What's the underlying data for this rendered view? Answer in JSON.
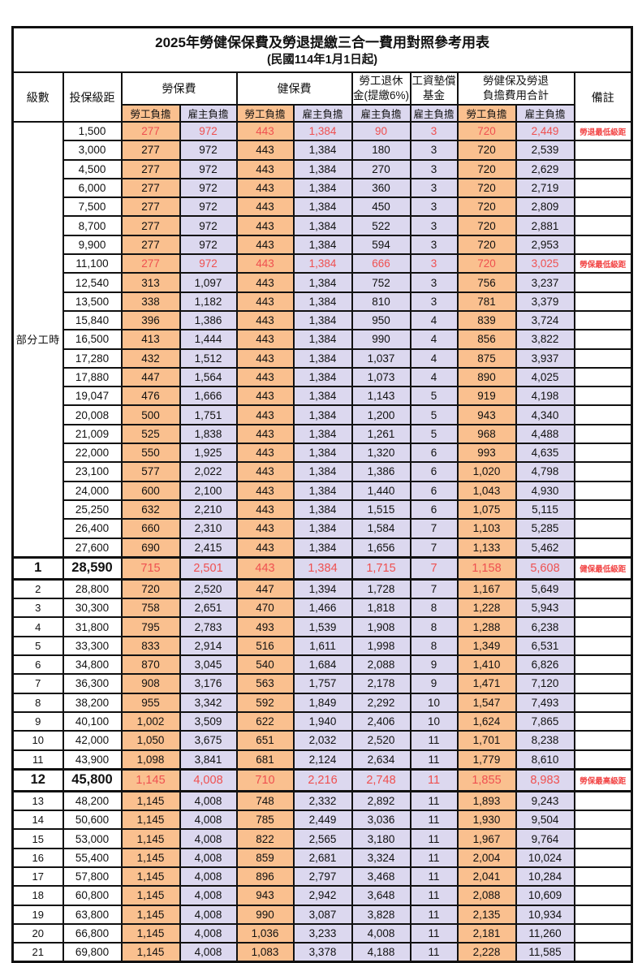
{
  "title": "2025年勞健保保費及勞退提繳三合一費用對照參考用表",
  "subtitle": "(民國114年1月1日起)",
  "header": {
    "level": "級數",
    "bracket": "投保級距",
    "labor_ins": "勞保費",
    "health_ins": "健保費",
    "pension_line1": "勞工退休",
    "pension_line2": "金(提繳6%)",
    "wage_fund_line1": "工資墊償",
    "wage_fund_line2": "基金",
    "total_line1": "勞健保及勞退",
    "total_line2": "負擔費用合計",
    "remark": "備註",
    "employee": "勞工負擔",
    "employer": "雇主負擔"
  },
  "part_time_label": "部分工時",
  "colors": {
    "employee_column_bg": "#FAC08F",
    "employer_column_bg": "#DCD8EF",
    "highlight_text": "#EF5050",
    "remark_text": "#F24444",
    "grid_border": "#111111"
  },
  "rows": [
    {
      "level": "",
      "bracket": "1,500",
      "v": [
        "277",
        "972",
        "443",
        "1,384",
        "90",
        "3",
        "720",
        "2,449"
      ],
      "remark": "勞退最低級距",
      "red": true,
      "big": false
    },
    {
      "level": "",
      "bracket": "3,000",
      "v": [
        "277",
        "972",
        "443",
        "1,384",
        "180",
        "3",
        "720",
        "2,539"
      ],
      "remark": "",
      "red": false,
      "big": false
    },
    {
      "level": "",
      "bracket": "4,500",
      "v": [
        "277",
        "972",
        "443",
        "1,384",
        "270",
        "3",
        "720",
        "2,629"
      ],
      "remark": "",
      "red": false,
      "big": false
    },
    {
      "level": "",
      "bracket": "6,000",
      "v": [
        "277",
        "972",
        "443",
        "1,384",
        "360",
        "3",
        "720",
        "2,719"
      ],
      "remark": "",
      "red": false,
      "big": false
    },
    {
      "level": "",
      "bracket": "7,500",
      "v": [
        "277",
        "972",
        "443",
        "1,384",
        "450",
        "3",
        "720",
        "2,809"
      ],
      "remark": "",
      "red": false,
      "big": false
    },
    {
      "level": "",
      "bracket": "8,700",
      "v": [
        "277",
        "972",
        "443",
        "1,384",
        "522",
        "3",
        "720",
        "2,881"
      ],
      "remark": "",
      "red": false,
      "big": false
    },
    {
      "level": "",
      "bracket": "9,900",
      "v": [
        "277",
        "972",
        "443",
        "1,384",
        "594",
        "3",
        "720",
        "2,953"
      ],
      "remark": "",
      "red": false,
      "big": false
    },
    {
      "level": "",
      "bracket": "11,100",
      "v": [
        "277",
        "972",
        "443",
        "1,384",
        "666",
        "3",
        "720",
        "3,025"
      ],
      "remark": "勞保最低級距",
      "red": true,
      "big": false
    },
    {
      "level": "",
      "bracket": "12,540",
      "v": [
        "313",
        "1,097",
        "443",
        "1,384",
        "752",
        "3",
        "756",
        "3,237"
      ],
      "remark": "",
      "red": false,
      "big": false
    },
    {
      "level": "",
      "bracket": "13,500",
      "v": [
        "338",
        "1,182",
        "443",
        "1,384",
        "810",
        "3",
        "781",
        "3,379"
      ],
      "remark": "",
      "red": false,
      "big": false
    },
    {
      "level": "",
      "bracket": "15,840",
      "v": [
        "396",
        "1,386",
        "443",
        "1,384",
        "950",
        "4",
        "839",
        "3,724"
      ],
      "remark": "",
      "red": false,
      "big": false
    },
    {
      "level": "",
      "bracket": "16,500",
      "v": [
        "413",
        "1,444",
        "443",
        "1,384",
        "990",
        "4",
        "856",
        "3,822"
      ],
      "remark": "",
      "red": false,
      "big": false
    },
    {
      "level": "",
      "bracket": "17,280",
      "v": [
        "432",
        "1,512",
        "443",
        "1,384",
        "1,037",
        "4",
        "875",
        "3,937"
      ],
      "remark": "",
      "red": false,
      "big": false
    },
    {
      "level": "",
      "bracket": "17,880",
      "v": [
        "447",
        "1,564",
        "443",
        "1,384",
        "1,073",
        "4",
        "890",
        "4,025"
      ],
      "remark": "",
      "red": false,
      "big": false
    },
    {
      "level": "",
      "bracket": "19,047",
      "v": [
        "476",
        "1,666",
        "443",
        "1,384",
        "1,143",
        "5",
        "919",
        "4,198"
      ],
      "remark": "",
      "red": false,
      "big": false
    },
    {
      "level": "",
      "bracket": "20,008",
      "v": [
        "500",
        "1,751",
        "443",
        "1,384",
        "1,200",
        "5",
        "943",
        "4,340"
      ],
      "remark": "",
      "red": false,
      "big": false
    },
    {
      "level": "",
      "bracket": "21,009",
      "v": [
        "525",
        "1,838",
        "443",
        "1,384",
        "1,261",
        "5",
        "968",
        "4,488"
      ],
      "remark": "",
      "red": false,
      "big": false
    },
    {
      "level": "",
      "bracket": "22,000",
      "v": [
        "550",
        "1,925",
        "443",
        "1,384",
        "1,320",
        "6",
        "993",
        "4,635"
      ],
      "remark": "",
      "red": false,
      "big": false
    },
    {
      "level": "",
      "bracket": "23,100",
      "v": [
        "577",
        "2,022",
        "443",
        "1,384",
        "1,386",
        "6",
        "1,020",
        "4,798"
      ],
      "remark": "",
      "red": false,
      "big": false
    },
    {
      "level": "",
      "bracket": "24,000",
      "v": [
        "600",
        "2,100",
        "443",
        "1,384",
        "1,440",
        "6",
        "1,043",
        "4,930"
      ],
      "remark": "",
      "red": false,
      "big": false
    },
    {
      "level": "",
      "bracket": "25,250",
      "v": [
        "632",
        "2,210",
        "443",
        "1,384",
        "1,515",
        "6",
        "1,075",
        "5,115"
      ],
      "remark": "",
      "red": false,
      "big": false
    },
    {
      "level": "",
      "bracket": "26,400",
      "v": [
        "660",
        "2,310",
        "443",
        "1,384",
        "1,584",
        "7",
        "1,103",
        "5,285"
      ],
      "remark": "",
      "red": false,
      "big": false
    },
    {
      "level": "",
      "bracket": "27,600",
      "v": [
        "690",
        "2,415",
        "443",
        "1,384",
        "1,656",
        "7",
        "1,133",
        "5,462"
      ],
      "remark": "",
      "red": false,
      "big": false
    },
    {
      "level": "1",
      "bracket": "28,590",
      "v": [
        "715",
        "2,501",
        "443",
        "1,384",
        "1,715",
        "7",
        "1,158",
        "5,608"
      ],
      "remark": "健保最低級距",
      "red": true,
      "big": true
    },
    {
      "level": "2",
      "bracket": "28,800",
      "v": [
        "720",
        "2,520",
        "447",
        "1,394",
        "1,728",
        "7",
        "1,167",
        "5,649"
      ],
      "remark": "",
      "red": false,
      "big": false
    },
    {
      "level": "3",
      "bracket": "30,300",
      "v": [
        "758",
        "2,651",
        "470",
        "1,466",
        "1,818",
        "8",
        "1,228",
        "5,943"
      ],
      "remark": "",
      "red": false,
      "big": false
    },
    {
      "level": "4",
      "bracket": "31,800",
      "v": [
        "795",
        "2,783",
        "493",
        "1,539",
        "1,908",
        "8",
        "1,288",
        "6,238"
      ],
      "remark": "",
      "red": false,
      "big": false
    },
    {
      "level": "5",
      "bracket": "33,300",
      "v": [
        "833",
        "2,914",
        "516",
        "1,611",
        "1,998",
        "8",
        "1,349",
        "6,531"
      ],
      "remark": "",
      "red": false,
      "big": false
    },
    {
      "level": "6",
      "bracket": "34,800",
      "v": [
        "870",
        "3,045",
        "540",
        "1,684",
        "2,088",
        "9",
        "1,410",
        "6,826"
      ],
      "remark": "",
      "red": false,
      "big": false
    },
    {
      "level": "7",
      "bracket": "36,300",
      "v": [
        "908",
        "3,176",
        "563",
        "1,757",
        "2,178",
        "9",
        "1,471",
        "7,120"
      ],
      "remark": "",
      "red": false,
      "big": false
    },
    {
      "level": "8",
      "bracket": "38,200",
      "v": [
        "955",
        "3,342",
        "592",
        "1,849",
        "2,292",
        "10",
        "1,547",
        "7,493"
      ],
      "remark": "",
      "red": false,
      "big": false
    },
    {
      "level": "9",
      "bracket": "40,100",
      "v": [
        "1,002",
        "3,509",
        "622",
        "1,940",
        "2,406",
        "10",
        "1,624",
        "7,865"
      ],
      "remark": "",
      "red": false,
      "big": false
    },
    {
      "level": "10",
      "bracket": "42,000",
      "v": [
        "1,050",
        "3,675",
        "651",
        "2,032",
        "2,520",
        "11",
        "1,701",
        "8,238"
      ],
      "remark": "",
      "red": false,
      "big": false
    },
    {
      "level": "11",
      "bracket": "43,900",
      "v": [
        "1,098",
        "3,841",
        "681",
        "2,124",
        "2,634",
        "11",
        "1,779",
        "8,610"
      ],
      "remark": "",
      "red": false,
      "big": false
    },
    {
      "level": "12",
      "bracket": "45,800",
      "v": [
        "1,145",
        "4,008",
        "710",
        "2,216",
        "2,748",
        "11",
        "1,855",
        "8,983"
      ],
      "remark": "勞保最高級距",
      "red": true,
      "big": true
    },
    {
      "level": "13",
      "bracket": "48,200",
      "v": [
        "1,145",
        "4,008",
        "748",
        "2,332",
        "2,892",
        "11",
        "1,893",
        "9,243"
      ],
      "remark": "",
      "red": false,
      "big": false
    },
    {
      "level": "14",
      "bracket": "50,600",
      "v": [
        "1,145",
        "4,008",
        "785",
        "2,449",
        "3,036",
        "11",
        "1,930",
        "9,504"
      ],
      "remark": "",
      "red": false,
      "big": false
    },
    {
      "level": "15",
      "bracket": "53,000",
      "v": [
        "1,145",
        "4,008",
        "822",
        "2,565",
        "3,180",
        "11",
        "1,967",
        "9,764"
      ],
      "remark": "",
      "red": false,
      "big": false
    },
    {
      "level": "16",
      "bracket": "55,400",
      "v": [
        "1,145",
        "4,008",
        "859",
        "2,681",
        "3,324",
        "11",
        "2,004",
        "10,024"
      ],
      "remark": "",
      "red": false,
      "big": false
    },
    {
      "level": "17",
      "bracket": "57,800",
      "v": [
        "1,145",
        "4,008",
        "896",
        "2,797",
        "3,468",
        "11",
        "2,041",
        "10,284"
      ],
      "remark": "",
      "red": false,
      "big": false
    },
    {
      "level": "18",
      "bracket": "60,800",
      "v": [
        "1,145",
        "4,008",
        "943",
        "2,942",
        "3,648",
        "11",
        "2,088",
        "10,609"
      ],
      "remark": "",
      "red": false,
      "big": false
    },
    {
      "level": "19",
      "bracket": "63,800",
      "v": [
        "1,145",
        "4,008",
        "990",
        "3,087",
        "3,828",
        "11",
        "2,135",
        "10,934"
      ],
      "remark": "",
      "red": false,
      "big": false
    },
    {
      "level": "20",
      "bracket": "66,800",
      "v": [
        "1,145",
        "4,008",
        "1,036",
        "3,233",
        "4,008",
        "11",
        "2,181",
        "11,260"
      ],
      "remark": "",
      "red": false,
      "big": false
    },
    {
      "level": "21",
      "bracket": "69,800",
      "v": [
        "1,145",
        "4,008",
        "1,083",
        "3,378",
        "4,188",
        "11",
        "2,228",
        "11,585"
      ],
      "remark": "",
      "red": false,
      "big": false
    }
  ]
}
